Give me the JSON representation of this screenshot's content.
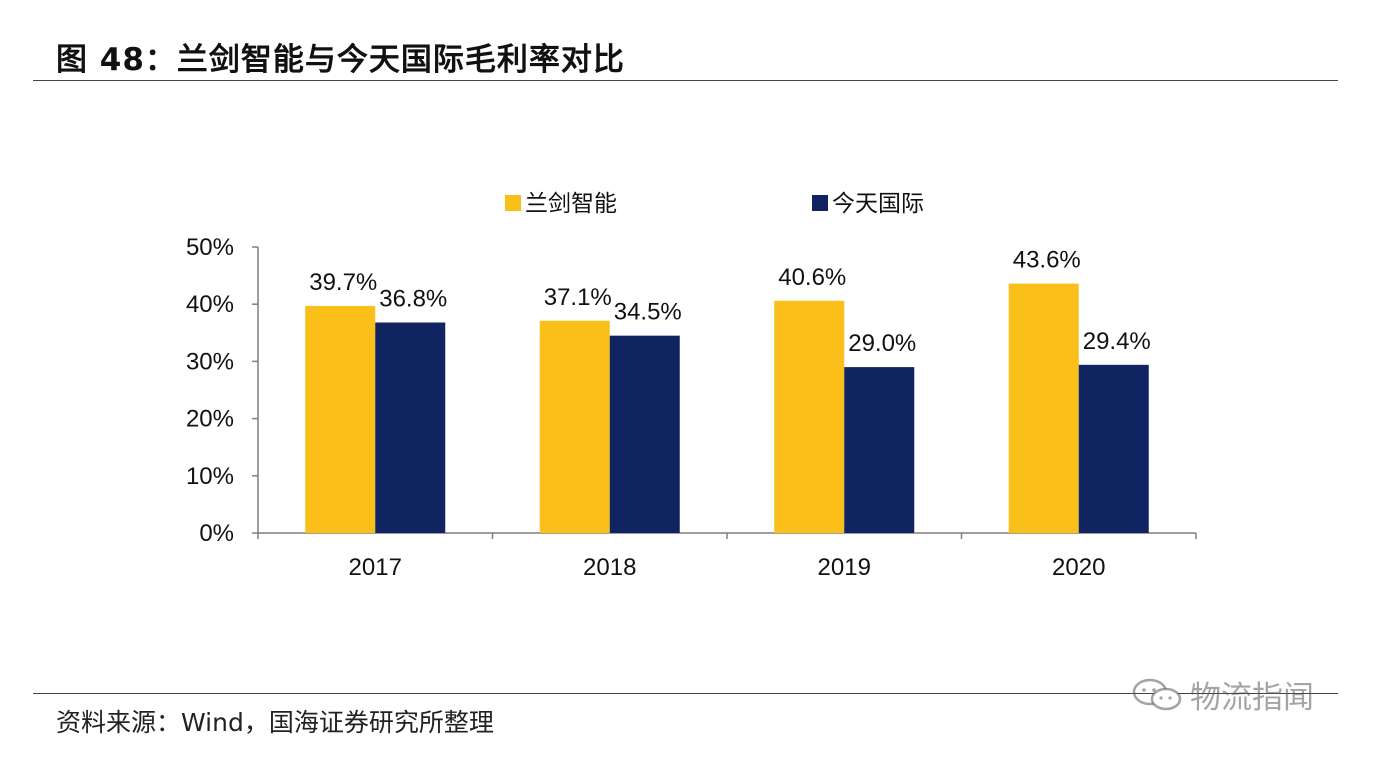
{
  "header": {
    "title": "图 48：兰剑智能与今天国际毛利率对比"
  },
  "footer": {
    "source": "资料来源：Wind，国海证券研究所整理",
    "watermark": "物流指闻"
  },
  "colors": {
    "series_1": "#FBBF1A",
    "series_2": "#0F2460",
    "axis": "#7F7F7F"
  },
  "chart_data": {
    "type": "bar",
    "title": "",
    "xlabel": "",
    "ylabel": "",
    "categories": [
      "2017",
      "2018",
      "2019",
      "2020"
    ],
    "series": [
      {
        "name": "兰剑智能",
        "values": [
          39.7,
          37.1,
          40.6,
          43.6
        ],
        "labels": [
          "39.7%",
          "37.1%",
          "40.6%",
          "43.6%"
        ],
        "color": "#FBBF1A"
      },
      {
        "name": "今天国际",
        "values": [
          36.8,
          34.5,
          29.0,
          29.4
        ],
        "labels": [
          "36.8%",
          "34.5%",
          "29.0%",
          "29.4%"
        ],
        "color": "#0F2460"
      }
    ],
    "ylim": [
      0,
      50
    ],
    "yticks": [
      0,
      10,
      20,
      30,
      40,
      50
    ],
    "ytick_labels": [
      "0%",
      "10%",
      "20%",
      "30%",
      "40%",
      "50%"
    ],
    "grid": false,
    "legend_position": "top-center"
  }
}
